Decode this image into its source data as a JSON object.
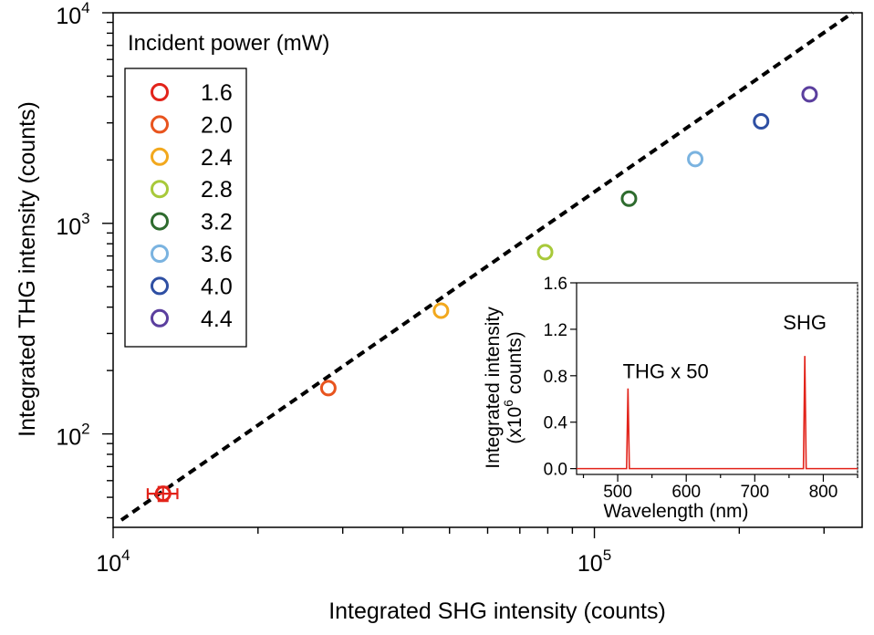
{
  "chart_data": [
    {
      "type": "scatter",
      "xlabel": "Integrated SHG intensity (counts)",
      "ylabel": "Integrated THG intensity (counts)",
      "x_scale": "log",
      "y_scale": "log",
      "xlim": [
        10000,
        360000
      ],
      "ylim": [
        36,
        10000
      ],
      "x_ticks": [
        {
          "value": 10000,
          "base": "10",
          "exp": "4"
        },
        {
          "value": 100000,
          "base": "10",
          "exp": "5"
        }
      ],
      "y_ticks": [
        {
          "value": 100,
          "base": "10",
          "exp": "2"
        },
        {
          "value": 1000,
          "base": "10",
          "exp": "3"
        },
        {
          "value": 10000,
          "base": "10",
          "exp": "4"
        }
      ],
      "legend": {
        "title": "Incident power (mW)",
        "placement": "top-left",
        "entries": [
          "1.6",
          "2.0",
          "2.4",
          "2.8",
          "3.2",
          "3.6",
          "4.0",
          "4.4"
        ]
      },
      "series": [
        {
          "name": "1.6",
          "color": "#e2231a",
          "x": 12700,
          "y": 52,
          "xerr": 900,
          "yerr": 4
        },
        {
          "name": "2.0",
          "color": "#e8541e",
          "x": 28000,
          "y": 165
        },
        {
          "name": "2.4",
          "color": "#f2a81d",
          "x": 48000,
          "y": 385
        },
        {
          "name": "2.8",
          "color": "#a8c93a",
          "x": 79000,
          "y": 730
        },
        {
          "name": "3.2",
          "color": "#2e6b2e",
          "x": 118000,
          "y": 1310
        },
        {
          "name": "3.6",
          "color": "#7ab3e0",
          "x": 162000,
          "y": 2020
        },
        {
          "name": "4.0",
          "color": "#2e4fa3",
          "x": 222000,
          "y": 3050
        },
        {
          "name": "4.4",
          "color": "#5b3f9e",
          "x": 280000,
          "y": 4100
        }
      ],
      "fit_line": {
        "style": "dashed",
        "color": "#000000",
        "x": [
          10400,
          344000
        ],
        "y": [
          39,
          10000
        ]
      },
      "grid": false
    },
    {
      "type": "line",
      "xlabel": "Wavelength (nm)",
      "ylabel_line1": "Integrated intensity",
      "ylabel_line2_pre": "(x10",
      "ylabel_line2_sup": "6",
      "ylabel_line2_post": " counts)",
      "xlim": [
        440,
        850
      ],
      "ylim": [
        -0.05,
        1.6
      ],
      "x_ticks": [
        500,
        600,
        700,
        800
      ],
      "y_ticks": [
        "0.0",
        "0.4",
        "0.8",
        "1.2",
        "1.6"
      ],
      "series": [
        {
          "color": "#e2231a",
          "peaks": [
            {
              "x": 515,
              "y": 0.69
            },
            {
              "x": 773,
              "y": 0.97
            }
          ]
        }
      ],
      "annotations": [
        {
          "text": "THG x 50",
          "x": 570,
          "y": 0.78
        },
        {
          "text": "SHG",
          "x": 773,
          "y": 1.2
        }
      ]
    }
  ]
}
